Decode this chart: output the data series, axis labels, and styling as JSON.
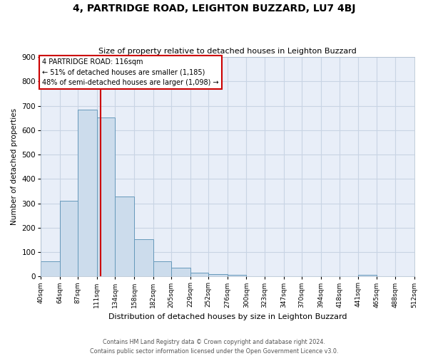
{
  "title": "4, PARTRIDGE ROAD, LEIGHTON BUZZARD, LU7 4BJ",
  "subtitle": "Size of property relative to detached houses in Leighton Buzzard",
  "xlabel": "Distribution of detached houses by size in Leighton Buzzard",
  "ylabel": "Number of detached properties",
  "bin_edges": [
    40,
    64,
    87,
    111,
    134,
    158,
    182,
    205,
    229,
    252,
    276,
    300,
    323,
    347,
    370,
    394,
    418,
    441,
    465,
    488,
    512
  ],
  "bin_values": [
    62,
    310,
    683,
    651,
    328,
    152,
    63,
    35,
    15,
    10,
    8,
    0,
    0,
    0,
    0,
    0,
    0,
    8,
    0,
    0
  ],
  "bar_color": "#ccdcec",
  "bar_edge_color": "#6699bb",
  "vline_x": 116,
  "vline_color": "#cc0000",
  "ylim": [
    0,
    900
  ],
  "yticks": [
    0,
    100,
    200,
    300,
    400,
    500,
    600,
    700,
    800,
    900
  ],
  "tick_labels": [
    "40sqm",
    "64sqm",
    "87sqm",
    "111sqm",
    "134sqm",
    "158sqm",
    "182sqm",
    "205sqm",
    "229sqm",
    "252sqm",
    "276sqm",
    "300sqm",
    "323sqm",
    "347sqm",
    "370sqm",
    "394sqm",
    "418sqm",
    "441sqm",
    "465sqm",
    "488sqm",
    "512sqm"
  ],
  "annotation_title": "4 PARTRIDGE ROAD: 116sqm",
  "annotation_line1": "← 51% of detached houses are smaller (1,185)",
  "annotation_line2": "48% of semi-detached houses are larger (1,098) →",
  "annotation_box_color": "#ffffff",
  "annotation_box_edge": "#cc0000",
  "grid_color": "#c8d4e4",
  "bg_color": "#e8eef8",
  "footer1": "Contains HM Land Registry data © Crown copyright and database right 2024.",
  "footer2": "Contains public sector information licensed under the Open Government Licence v3.0."
}
